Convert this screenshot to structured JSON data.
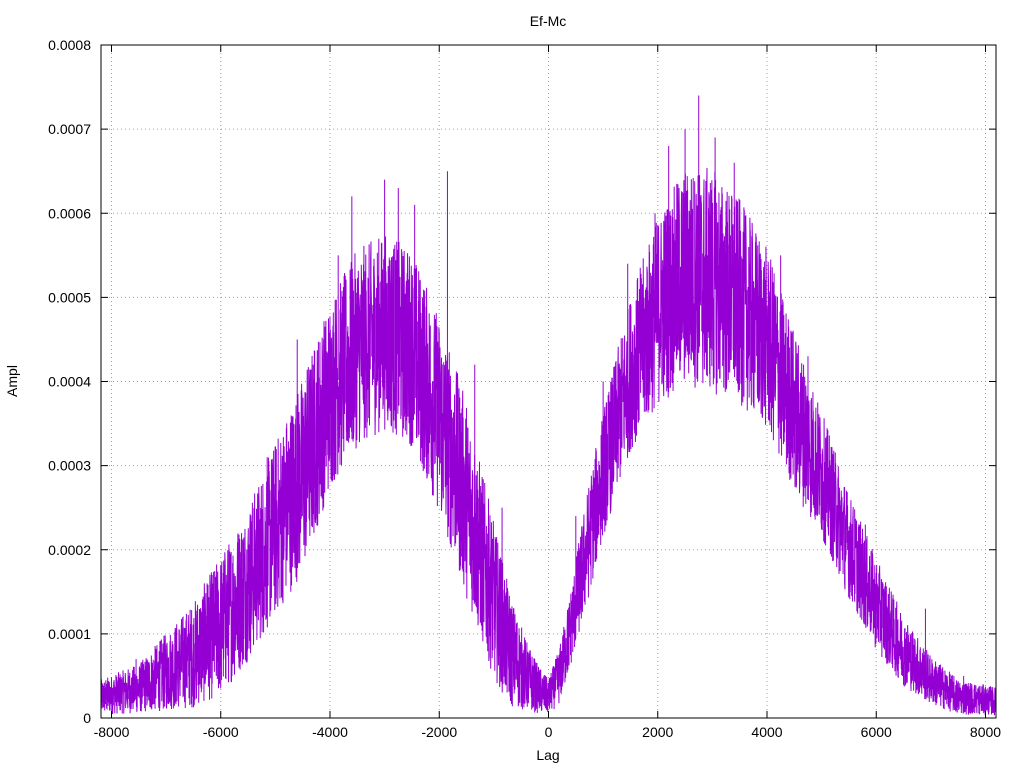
{
  "chart_data": {
    "type": "line",
    "title": "Ef-Mc",
    "xlabel": "Lag",
    "ylabel": "Ampl",
    "xlim": [
      -8192,
      8192
    ],
    "ylim": [
      0,
      0.0008
    ],
    "x_ticks": [
      {
        "value": -8000,
        "label": "-8000"
      },
      {
        "value": -6000,
        "label": "-6000"
      },
      {
        "value": -4000,
        "label": "-4000"
      },
      {
        "value": -2000,
        "label": "-2000"
      },
      {
        "value": 0,
        "label": "0"
      },
      {
        "value": 2000,
        "label": "2000"
      },
      {
        "value": 4000,
        "label": "4000"
      },
      {
        "value": 6000,
        "label": "6000"
      },
      {
        "value": 8000,
        "label": "8000"
      }
    ],
    "y_ticks": [
      {
        "value": 0,
        "label": "0"
      },
      {
        "value": 0.0001,
        "label": "0.0001"
      },
      {
        "value": 0.0002,
        "label": "0.0002"
      },
      {
        "value": 0.0003,
        "label": "0.0003"
      },
      {
        "value": 0.0004,
        "label": "0.0004"
      },
      {
        "value": 0.0005,
        "label": "0.0005"
      },
      {
        "value": 0.0006,
        "label": "0.0006"
      },
      {
        "value": 0.0007,
        "label": "0.0007"
      },
      {
        "value": 0.0008,
        "label": "0.0008"
      }
    ],
    "grid": true,
    "series": [
      {
        "color": "#9400d3",
        "envelope": {
          "x": [
            -8192,
            -7500,
            -7000,
            -6500,
            -6000,
            -5500,
            -5000,
            -4500,
            -4000,
            -3500,
            -3000,
            -2500,
            -2000,
            -1500,
            -1000,
            -700,
            -400,
            -200,
            0,
            200,
            400,
            700,
            1000,
            1500,
            2000,
            2500,
            3000,
            3500,
            4000,
            4500,
            5000,
            5500,
            6000,
            6500,
            7000,
            7500,
            8192
          ],
          "low": [
            0,
            0,
            0,
            0,
            1e-05,
            5e-05,
            0.0001,
            0.00015,
            0.00025,
            0.0003,
            0.00032,
            0.0003,
            0.00022,
            0.00012,
            3e-05,
            0,
            0,
            0,
            0,
            1e-05,
            5e-05,
            0.00012,
            0.0002,
            0.0003,
            0.00035,
            0.00037,
            0.00036,
            0.00035,
            0.00032,
            0.00025,
            0.0002,
            0.00013,
            7e-05,
            3e-05,
            1e-05,
            0,
            0
          ],
          "high": [
            5e-05,
            7e-05,
            0.00011,
            0.00015,
            0.00021,
            0.00027,
            0.00035,
            0.00043,
            0.00052,
            0.00058,
            0.0006,
            0.00058,
            0.0005,
            0.0004,
            0.00025,
            0.00016,
            0.0001,
            7e-05,
            5e-05,
            9e-05,
            0.00016,
            0.00028,
            0.00038,
            0.00052,
            0.00062,
            0.00068,
            0.00068,
            0.00064,
            0.00058,
            0.00048,
            0.00038,
            0.00028,
            0.0002,
            0.00013,
            8e-05,
            5e-05,
            4e-05
          ]
        },
        "spikes": [
          {
            "x": -7550,
            "y": 7e-05
          },
          {
            "x": -6250,
            "y": 0.00016
          },
          {
            "x": -5150,
            "y": 0.00031
          },
          {
            "x": -4600,
            "y": 0.00045
          },
          {
            "x": -3850,
            "y": 0.00055
          },
          {
            "x": -3600,
            "y": 0.00062
          },
          {
            "x": -3000,
            "y": 0.00064
          },
          {
            "x": -2750,
            "y": 0.00063
          },
          {
            "x": -2450,
            "y": 0.00061
          },
          {
            "x": -1850,
            "y": 0.00065
          },
          {
            "x": -1350,
            "y": 0.00042
          },
          {
            "x": -850,
            "y": 0.00025
          },
          {
            "x": 500,
            "y": 0.00024
          },
          {
            "x": 1000,
            "y": 0.0004
          },
          {
            "x": 1450,
            "y": 0.00054
          },
          {
            "x": 1950,
            "y": 0.0006
          },
          {
            "x": 2200,
            "y": 0.00068
          },
          {
            "x": 2500,
            "y": 0.0007
          },
          {
            "x": 2750,
            "y": 0.00074
          },
          {
            "x": 3050,
            "y": 0.00069
          },
          {
            "x": 3400,
            "y": 0.00066
          },
          {
            "x": 4250,
            "y": 0.00055
          },
          {
            "x": 4750,
            "y": 0.00043
          },
          {
            "x": 5800,
            "y": 0.00023
          },
          {
            "x": 6900,
            "y": 0.00013
          },
          {
            "x": 7600,
            "y": 5e-05
          }
        ]
      }
    ]
  }
}
